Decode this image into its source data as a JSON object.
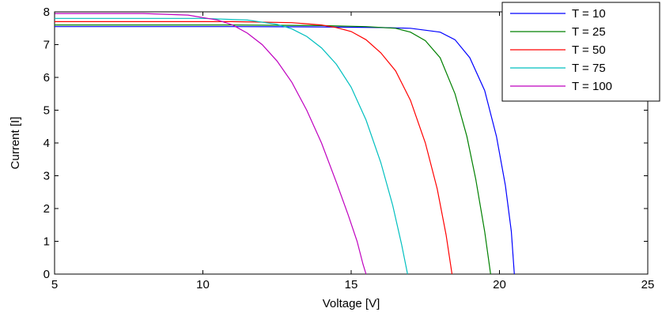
{
  "chart_data": {
    "type": "line",
    "title": "",
    "xlabel": "Voltage [V]",
    "ylabel": "Current [I]",
    "xlim": [
      5,
      25
    ],
    "ylim": [
      0,
      8
    ],
    "xticks": [
      "5",
      "10",
      "15",
      "20",
      "25"
    ],
    "yticks": [
      "0",
      "1",
      "2",
      "3",
      "4",
      "5",
      "6",
      "7",
      "8"
    ],
    "grid": false,
    "legend_position": "top-right",
    "series": [
      {
        "name": "T = 10",
        "color": "#0000ff",
        "x": [
          5,
          11,
          14,
          16,
          17,
          18,
          18.5,
          19,
          19.5,
          19.9,
          20.2,
          20.4,
          20.5
        ],
        "y": [
          7.55,
          7.55,
          7.54,
          7.52,
          7.5,
          7.38,
          7.15,
          6.6,
          5.6,
          4.2,
          2.7,
          1.3,
          0
        ]
      },
      {
        "name": "T = 25",
        "color": "#008000",
        "x": [
          5,
          11,
          14,
          15.5,
          16.5,
          17,
          17.5,
          18,
          18.5,
          18.9,
          19.2,
          19.5,
          19.7
        ],
        "y": [
          7.6,
          7.6,
          7.58,
          7.55,
          7.5,
          7.38,
          7.12,
          6.6,
          5.5,
          4.2,
          2.9,
          1.3,
          0
        ]
      },
      {
        "name": "T = 50",
        "color": "#ff0000",
        "x": [
          5,
          11,
          13,
          14,
          14.5,
          15,
          15.5,
          16,
          16.5,
          17,
          17.5,
          17.9,
          18.2,
          18.4
        ],
        "y": [
          7.7,
          7.7,
          7.67,
          7.6,
          7.52,
          7.4,
          7.15,
          6.75,
          6.2,
          5.3,
          4.0,
          2.6,
          1.2,
          0
        ]
      },
      {
        "name": "T = 75",
        "color": "#00bfbf",
        "x": [
          5,
          10,
          11.5,
          12.5,
          13,
          13.5,
          14,
          14.5,
          15,
          15.5,
          16,
          16.4,
          16.7,
          16.9
        ],
        "y": [
          7.8,
          7.8,
          7.75,
          7.62,
          7.48,
          7.25,
          6.9,
          6.4,
          5.7,
          4.7,
          3.4,
          2.1,
          0.9,
          0
        ]
      },
      {
        "name": "T = 100",
        "color": "#bf00bf",
        "x": [
          5,
          8,
          9.5,
          10.5,
          11,
          11.5,
          12,
          12.5,
          13,
          13.5,
          14,
          14.5,
          14.9,
          15.2,
          15.4,
          15.5
        ],
        "y": [
          7.95,
          7.95,
          7.9,
          7.75,
          7.6,
          7.35,
          7.0,
          6.5,
          5.85,
          5.0,
          4.0,
          2.8,
          1.8,
          1.0,
          0.3,
          0
        ]
      }
    ]
  }
}
